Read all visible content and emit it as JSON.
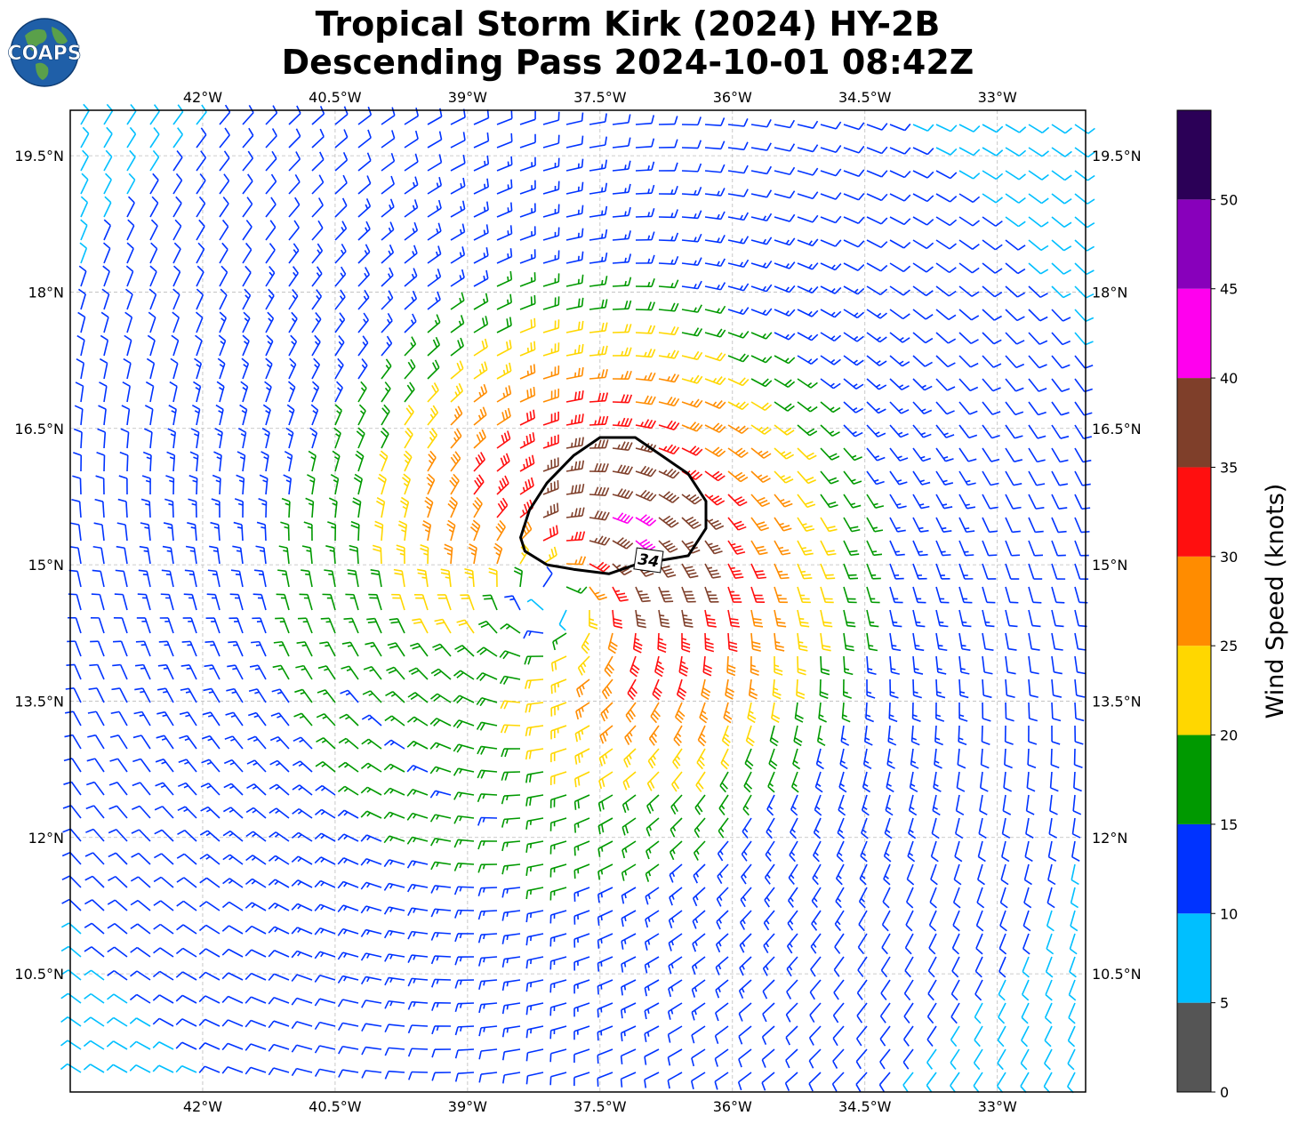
{
  "title": {
    "line1": "Tropical Storm Kirk (2024) HY-2B",
    "line2": "Descending Pass 2024-10-01 08:42Z"
  },
  "logo": {
    "text": "COAPS",
    "icon": "globe-icon"
  },
  "map": {
    "lon_range": [
      -43.5,
      -32.0
    ],
    "lat_range": [
      9.2,
      20.0
    ],
    "lon_ticks": [
      {
        "value": -42.0,
        "label": "42°W"
      },
      {
        "value": -40.5,
        "label": "40.5°W"
      },
      {
        "value": -39.0,
        "label": "39°W"
      },
      {
        "value": -37.5,
        "label": "37.5°W"
      },
      {
        "value": -36.0,
        "label": "36°W"
      },
      {
        "value": -34.5,
        "label": "34.5°W"
      },
      {
        "value": -33.0,
        "label": "33°W"
      }
    ],
    "lat_ticks": [
      {
        "value": 19.5,
        "label": "19.5°N"
      },
      {
        "value": 18.0,
        "label": "18°N"
      },
      {
        "value": 16.5,
        "label": "16.5°N"
      },
      {
        "value": 15.0,
        "label": "15°N"
      },
      {
        "value": 13.5,
        "label": "13.5°N"
      },
      {
        "value": 12.0,
        "label": "12°N"
      },
      {
        "value": 10.5,
        "label": "10.5°N"
      }
    ],
    "gridlines": true,
    "storm_center": {
      "lon": -38.0,
      "lat": 14.6
    },
    "contour_34kt": {
      "label": "34",
      "points": [
        [
          -38.4,
          15.3
        ],
        [
          -38.3,
          15.6
        ],
        [
          -38.1,
          15.9
        ],
        [
          -37.8,
          16.2
        ],
        [
          -37.5,
          16.4
        ],
        [
          -37.1,
          16.4
        ],
        [
          -36.8,
          16.2
        ],
        [
          -36.5,
          16.0
        ],
        [
          -36.3,
          15.7
        ],
        [
          -36.3,
          15.4
        ],
        [
          -36.5,
          15.1
        ],
        [
          -36.8,
          15.05
        ],
        [
          -37.1,
          15.0
        ],
        [
          -37.4,
          14.9
        ],
        [
          -37.8,
          14.95
        ],
        [
          -38.1,
          15.0
        ],
        [
          -38.35,
          15.15
        ]
      ]
    }
  },
  "colorbar": {
    "title": "Wind Speed (knots)",
    "bins": [
      {
        "min": 0,
        "max": 5,
        "color": "#555555"
      },
      {
        "min": 5,
        "max": 10,
        "color": "#00bfff"
      },
      {
        "min": 10,
        "max": 15,
        "color": "#0033ff"
      },
      {
        "min": 15,
        "max": 20,
        "color": "#009900"
      },
      {
        "min": 20,
        "max": 25,
        "color": "#ffd700"
      },
      {
        "min": 25,
        "max": 30,
        "color": "#ff8c00"
      },
      {
        "min": 30,
        "max": 35,
        "color": "#ff0f0f"
      },
      {
        "min": 35,
        "max": 40,
        "color": "#7f3f2a"
      },
      {
        "min": 40,
        "max": 45,
        "color": "#ff00ee"
      },
      {
        "min": 45,
        "max": 50,
        "color": "#8800bb"
      },
      {
        "min": 50,
        "max": 55,
        "color": "#2b0057"
      }
    ],
    "tick_labels": [
      "0",
      "5",
      "10",
      "15",
      "20",
      "25",
      "30",
      "35",
      "40",
      "45",
      "50"
    ]
  }
}
